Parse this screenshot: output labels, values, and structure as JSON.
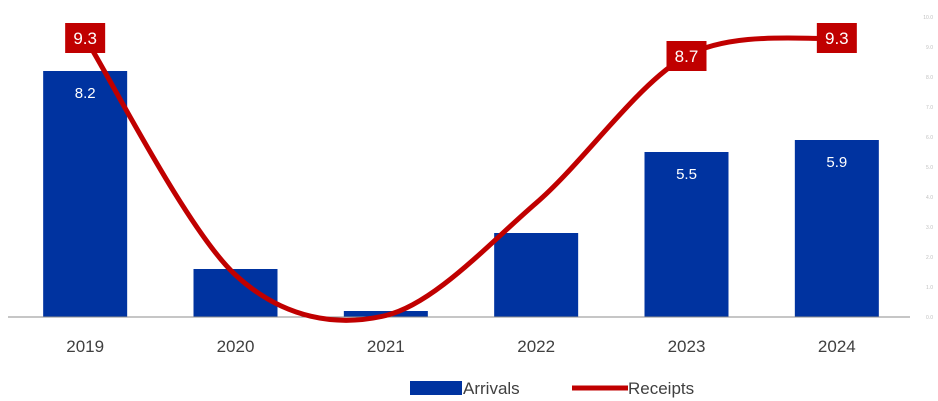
{
  "chart_data": {
    "type": "bar",
    "categories": [
      "2019",
      "2020",
      "2021",
      "2022",
      "2023",
      "2024"
    ],
    "series": [
      {
        "name": "Arrivals",
        "type": "bar",
        "color": "#0033a0",
        "values": [
          8.2,
          1.6,
          0.2,
          2.8,
          5.5,
          5.9
        ],
        "data_labels": [
          "8.2",
          "",
          "",
          "",
          "5.5",
          "5.9"
        ]
      },
      {
        "name": "Receipts",
        "type": "line",
        "color": "#c00000",
        "values": [
          9.3,
          1.4,
          0.05,
          3.8,
          8.7,
          9.3
        ],
        "data_labels": [
          "9.3",
          "",
          "",
          "",
          "8.7",
          "9.3"
        ]
      }
    ],
    "ylim": [
      0,
      10
    ],
    "right_axis_ticks": [
      "0.0",
      "1.0",
      "2.0",
      "3.0",
      "4.0",
      "5.0",
      "6.0",
      "7.0",
      "8.0",
      "9.0",
      "10.0"
    ],
    "legend": {
      "position": "bottom",
      "entries": [
        "Arrivals",
        "Receipts"
      ]
    },
    "grid": false
  }
}
